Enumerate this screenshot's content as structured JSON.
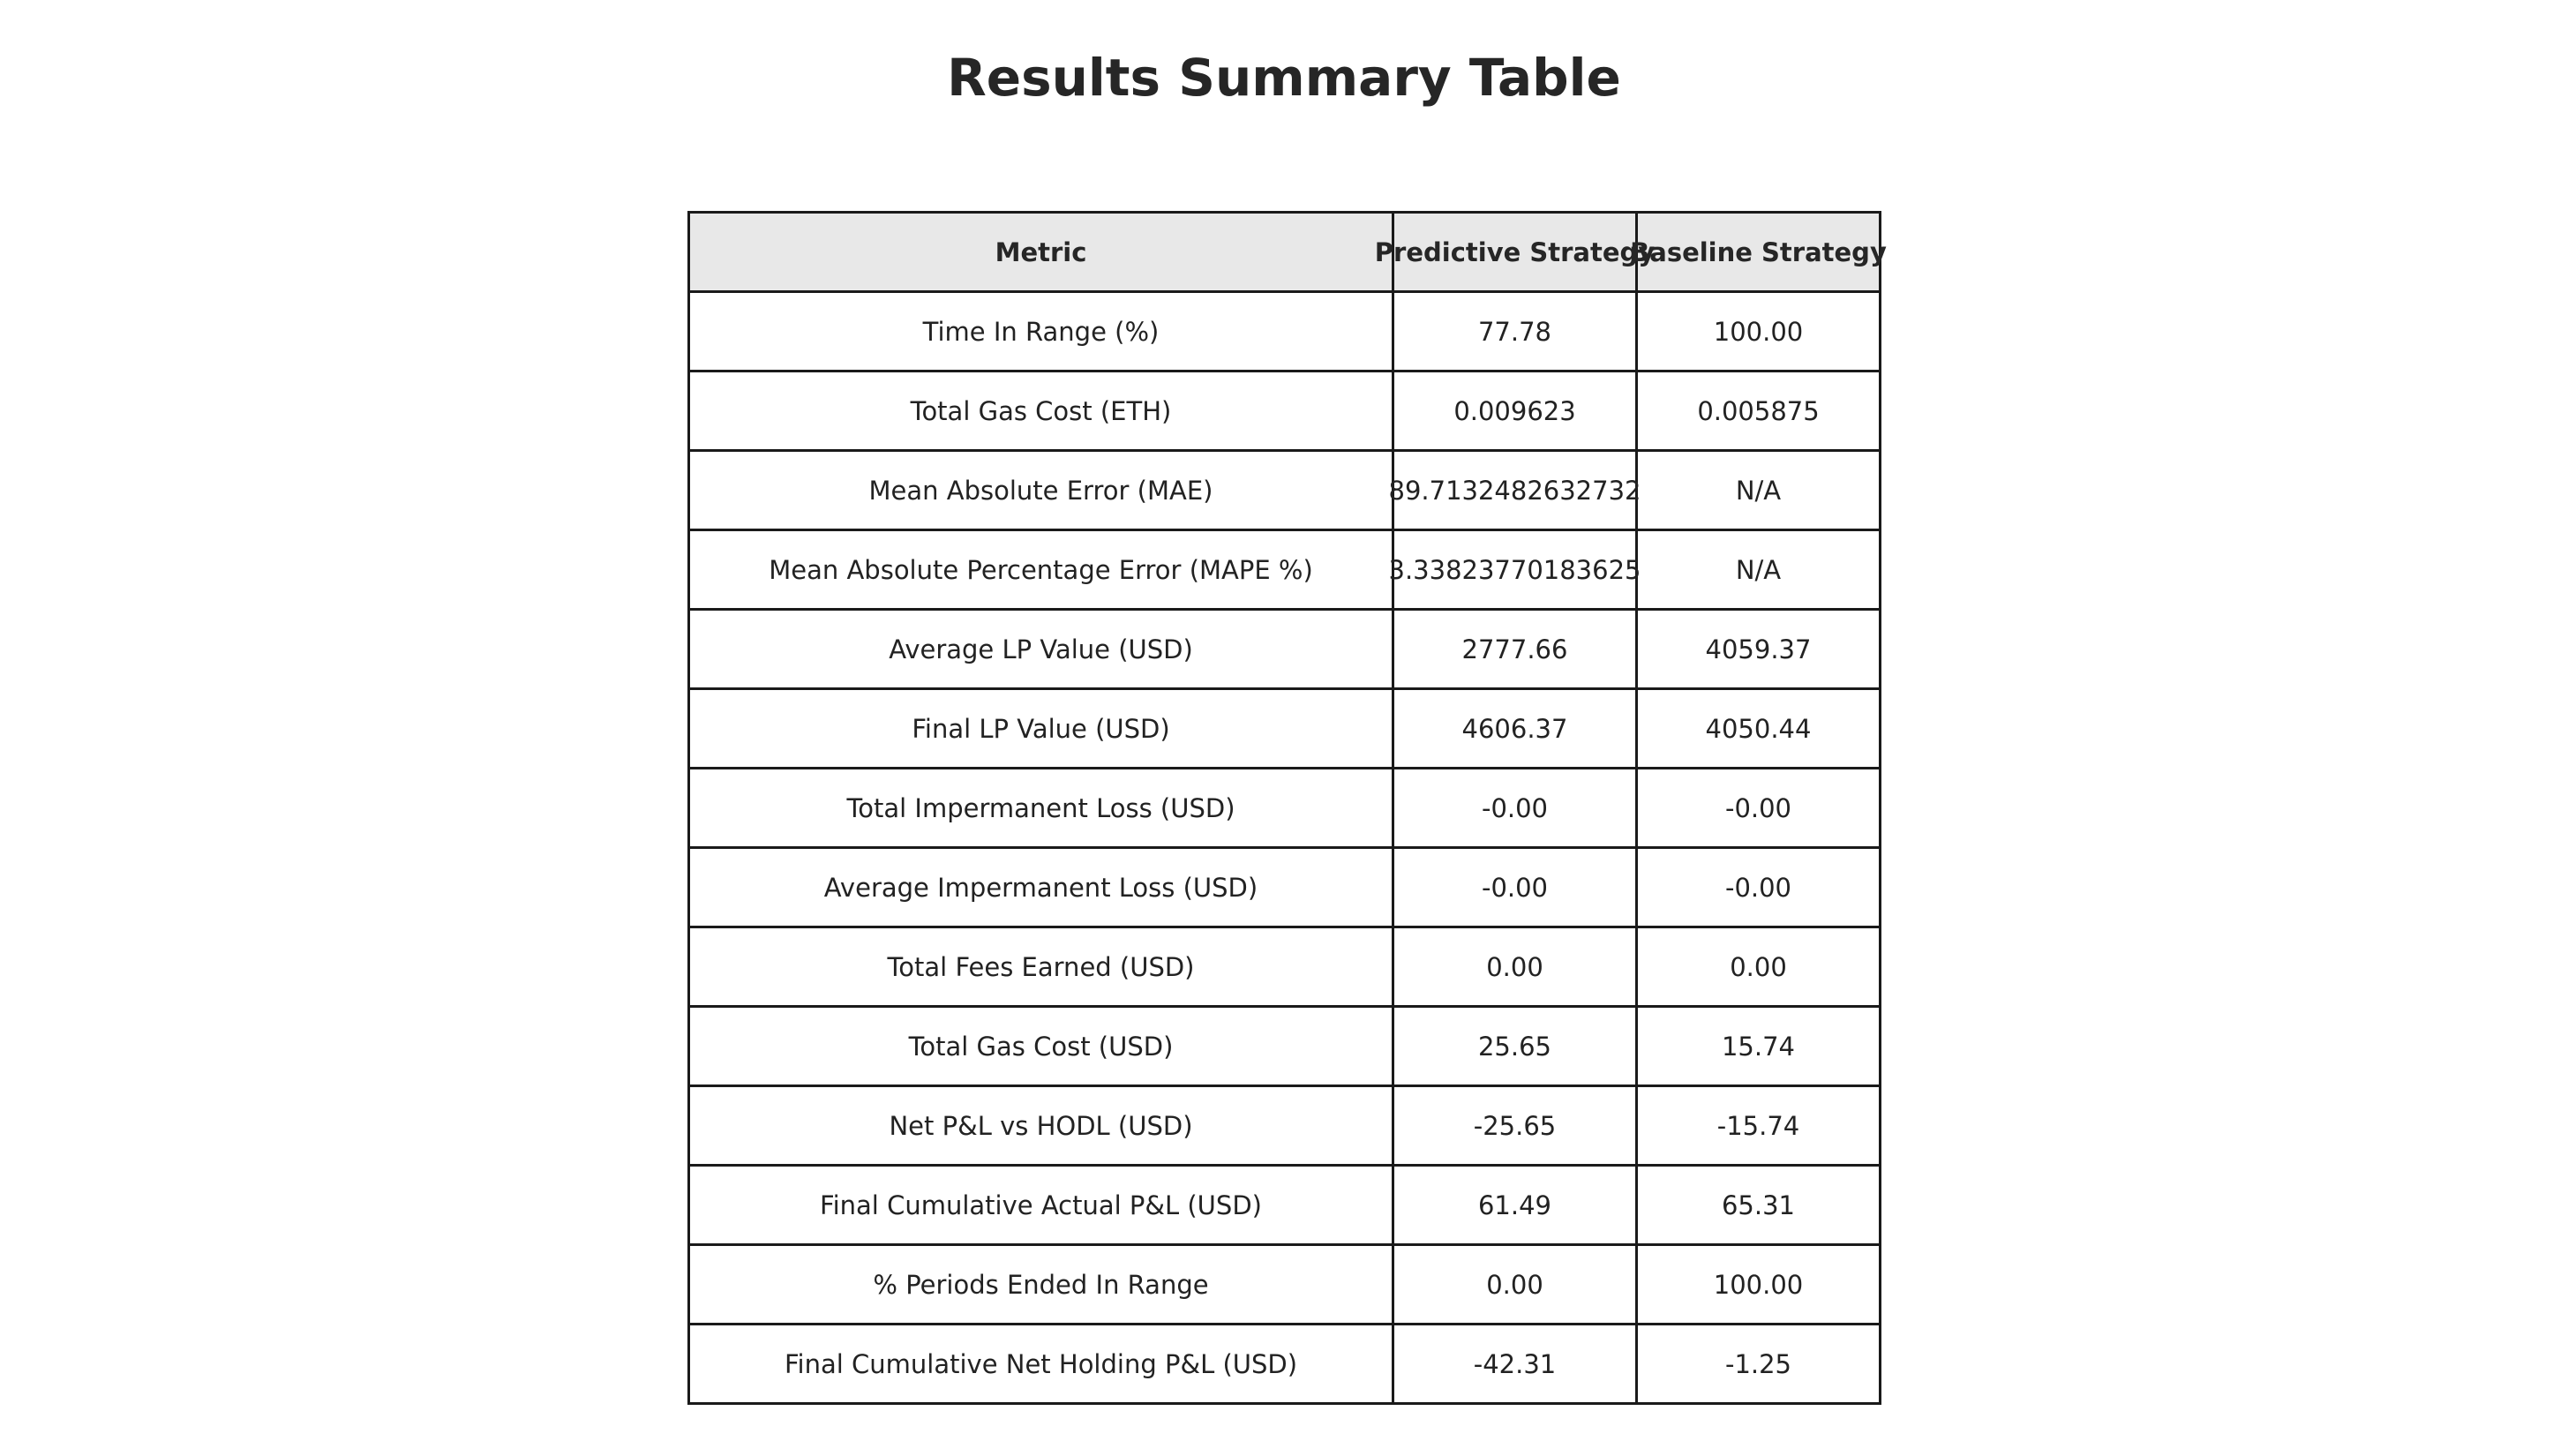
{
  "chart_data": {
    "type": "table",
    "title": "Results Summary Table",
    "columns": [
      "Metric",
      "Predictive Strategy",
      "Baseline Strategy"
    ],
    "rows": [
      [
        "Time In Range (%)",
        "77.78",
        "100.00"
      ],
      [
        "Total Gas Cost (ETH)",
        "0.009623",
        "0.005875"
      ],
      [
        "Mean Absolute Error (MAE)",
        "89.7132482632732",
        "N/A"
      ],
      [
        "Mean Absolute Percentage Error (MAPE %)",
        "3.33823770183625",
        "N/A"
      ],
      [
        "Average LP Value (USD)",
        "2777.66",
        "4059.37"
      ],
      [
        "Final LP Value (USD)",
        "4606.37",
        "4050.44"
      ],
      [
        "Total Impermanent Loss (USD)",
        "-0.00",
        "-0.00"
      ],
      [
        "Average Impermanent Loss (USD)",
        "-0.00",
        "-0.00"
      ],
      [
        "Total Fees Earned (USD)",
        "0.00",
        "0.00"
      ],
      [
        "Total Gas Cost (USD)",
        "25.65",
        "15.74"
      ],
      [
        "Net P&L vs HODL (USD)",
        "-25.65",
        "-15.74"
      ],
      [
        "Final Cumulative Actual P&L (USD)",
        "61.49",
        "65.31"
      ],
      [
        "% Periods Ended In Range",
        "0.00",
        "100.00"
      ],
      [
        "Final Cumulative Net Holding P&L (USD)",
        "-42.31",
        "-1.25"
      ]
    ]
  },
  "colors": {
    "header_bg": "#e8e8e8",
    "border": "#1a1a1a",
    "text": "#222222"
  }
}
